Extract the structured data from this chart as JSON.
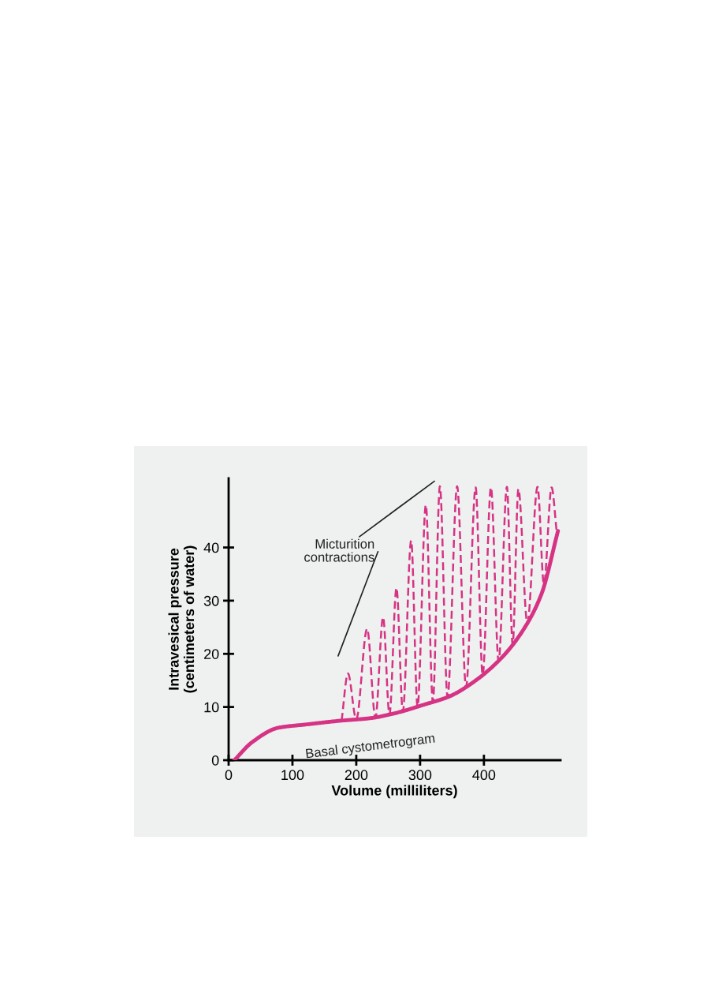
{
  "chart_data": {
    "type": "line",
    "xlabel": "Volume (milliliters)",
    "ylabel": "Intravesical pressure\n(centimeters of water)",
    "xlim": [
      0,
      520
    ],
    "ylim": [
      0,
      53
    ],
    "xticks": [
      0,
      100,
      200,
      300,
      400
    ],
    "yticks": [
      0,
      10,
      20,
      30,
      40
    ],
    "grid": false,
    "legend": false,
    "annotations": [
      "Micturition contractions"
    ],
    "series": [
      {
        "name": "Basal cystometrogram",
        "color": "#d63384",
        "line_style": "solid",
        "x": [
          9,
          37,
          78,
          120,
          173,
          222,
          263,
          305,
          346,
          386,
          428,
          460,
          490,
          516
        ],
        "values": [
          0,
          3.4,
          6.1,
          6.7,
          7.4,
          7.9,
          8.9,
          10.4,
          12.0,
          14.9,
          19.3,
          24.2,
          31.2,
          43.1
        ]
      },
      {
        "color": "#d63384",
        "line_style": "dashed",
        "x": [
          177,
          187,
          200,
          217,
          230,
          242,
          252,
          263,
          273,
          286,
          296,
          309,
          320,
          331,
          343,
          358,
          372,
          387,
          398,
          411,
          423,
          436,
          445,
          454,
          468,
          484,
          494,
          506,
          514
        ],
        "values": [
          7.4,
          16.3,
          7.7,
          24.7,
          8.0,
          26.9,
          8.6,
          32.4,
          9.2,
          41.3,
          10.1,
          48.0,
          11.0,
          51.5,
          11.9,
          51.5,
          13.8,
          51.3,
          16.0,
          51.3,
          18.6,
          51.4,
          21.8,
          51.0,
          25.8,
          51.4,
          33.1,
          51.3,
          43.0
        ]
      }
    ]
  }
}
